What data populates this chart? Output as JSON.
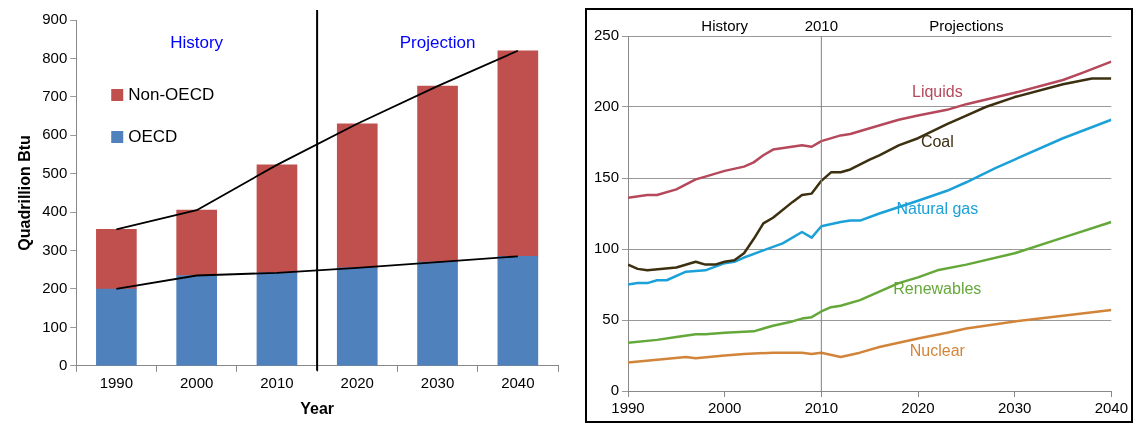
{
  "chart_data": [
    {
      "type": "bar",
      "stacked": true,
      "xlabel": "Year",
      "ylabel": "Quadrillion Btu",
      "x": [
        1990,
        2000,
        2010,
        2020,
        2030,
        2040
      ],
      "xlim": [
        1985,
        2045
      ],
      "xticks": [
        1990,
        2000,
        2010,
        2020,
        2030,
        2040
      ],
      "ylim": [
        0,
        900
      ],
      "yticks": [
        0,
        100,
        200,
        300,
        400,
        500,
        600,
        700,
        800,
        900
      ],
      "legend": "top left",
      "annotations": [
        "History",
        "Projection"
      ],
      "ref_lines": [
        {
          "axis": "x",
          "value": 2015,
          "color": "#000000"
        }
      ],
      "series": [
        {
          "name": "OECD",
          "color": "#4f81bd",
          "values": [
            200,
            235,
            242,
            255,
            270,
            285
          ]
        },
        {
          "name": "Non-OECD",
          "color": "#c0504d",
          "values": [
            155,
            170,
            281,
            375,
            458,
            535
          ]
        },
        {
          "type": "line",
          "color": "#000000",
          "values": [
            355,
            405,
            523,
            630,
            728,
            820
          ]
        },
        {
          "type": "line",
          "color": "#000000",
          "values": [
            200,
            235,
            242,
            255,
            270,
            285
          ]
        }
      ]
    },
    {
      "type": "line",
      "xlim": [
        1990,
        2040
      ],
      "xticks": [
        1990,
        2000,
        2010,
        2020,
        2030,
        2040
      ],
      "ylim": [
        0,
        250
      ],
      "yticks": [
        0,
        50,
        100,
        150,
        200,
        250
      ],
      "grid": "y",
      "legend": false,
      "annotations": [
        "History",
        "Projections"
      ],
      "ref_lines": [
        {
          "axis": "x",
          "value": 2010,
          "label": "2010",
          "color": "#808080"
        }
      ],
      "series": [
        {
          "name": "Liquids",
          "color": "#b5495b",
          "x": [
            1990,
            1992,
            1993,
            1995,
            1997,
            1998,
            2000,
            2002,
            2003,
            2004,
            2005,
            2008,
            2009,
            2010,
            2012,
            2013,
            2015,
            2018,
            2020,
            2023,
            2025,
            2030,
            2035,
            2037,
            2040
          ],
          "values": [
            136,
            138,
            138,
            142,
            149,
            151,
            155,
            158,
            161,
            166,
            170,
            173,
            172,
            176,
            180,
            181,
            185,
            191,
            194,
            198,
            202,
            210,
            219,
            224,
            232
          ]
        },
        {
          "name": "Coal",
          "color": "#3d3011",
          "x": [
            1990,
            1991,
            1992,
            1995,
            1997,
            1998,
            1999,
            2000,
            2001,
            2002,
            2003,
            2004,
            2005,
            2007,
            2008,
            2009,
            2010,
            2011,
            2012,
            2013,
            2015,
            2016,
            2018,
            2020,
            2023,
            2025,
            2027,
            2030,
            2035,
            2038,
            2040
          ],
          "values": [
            89,
            86,
            85,
            87,
            91,
            89,
            89,
            91,
            92,
            97,
            107,
            118,
            122,
            133,
            138,
            139,
            148,
            154,
            154,
            156,
            163,
            166,
            173,
            178,
            188,
            194,
            200,
            207,
            216,
            220,
            220
          ]
        },
        {
          "name": "Natural gas",
          "color": "#1ba1d8",
          "x": [
            1990,
            1991,
            1992,
            1993,
            1994,
            1996,
            1998,
            2000,
            2001,
            2002,
            2004,
            2006,
            2008,
            2009,
            2010,
            2012,
            2013,
            2014,
            2016,
            2020,
            2023,
            2025,
            2028,
            2030,
            2035,
            2040
          ],
          "values": [
            75,
            76,
            76,
            78,
            78,
            84,
            85,
            90,
            91,
            94,
            99,
            104,
            112,
            108,
            116,
            119,
            120,
            120,
            125,
            134,
            141,
            147,
            157,
            163,
            178,
            191
          ]
        },
        {
          "name": "Renewables",
          "color": "#65a83a",
          "x": [
            1990,
            1993,
            1995,
            1997,
            1998,
            2000,
            2003,
            2005,
            2007,
            2008,
            2009,
            2010,
            2011,
            2012,
            2014,
            2016,
            2018,
            2020,
            2022,
            2025,
            2030,
            2035,
            2040
          ],
          "values": [
            34,
            36,
            38,
            40,
            40,
            41,
            42,
            46,
            49,
            51,
            52,
            56,
            59,
            60,
            64,
            70,
            76,
            80,
            85,
            89,
            97,
            108,
            119
          ]
        },
        {
          "name": "Nuclear",
          "color": "#d2853a",
          "x": [
            1990,
            1993,
            1996,
            1997,
            2000,
            2002,
            2005,
            2008,
            2009,
            2010,
            2012,
            2014,
            2016,
            2020,
            2023,
            2025,
            2030,
            2035,
            2040
          ],
          "values": [
            20,
            22,
            24,
            23,
            25,
            26,
            27,
            27,
            26,
            27,
            24,
            27,
            31,
            37,
            41,
            44,
            49,
            53,
            57
          ]
        }
      ]
    }
  ]
}
